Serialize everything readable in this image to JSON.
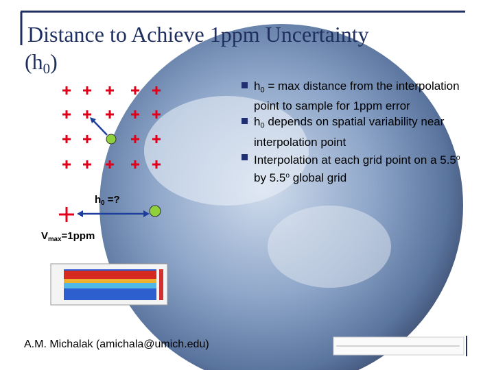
{
  "title": {
    "main": "Distance to Achieve 1ppm Uncertainty",
    "sub_parts": [
      "(h",
      "0",
      ")"
    ]
  },
  "bullets": [
    [
      "h",
      "0",
      " = max distance from the interpolation point to sample for 1ppm error"
    ],
    [
      "h",
      "0",
      " depends on spatial variability near interpolation point"
    ],
    [
      "Interpolation at each grid point on a 5.5",
      "o",
      " by 5.5",
      "o",
      " global grid"
    ]
  ],
  "diagram": {
    "h_label": [
      "h",
      "0",
      " =?"
    ],
    "v_label": [
      "V",
      "max",
      "=1ppm"
    ]
  },
  "footer": "A.M. Michalak (amichala@umich.edu)"
}
